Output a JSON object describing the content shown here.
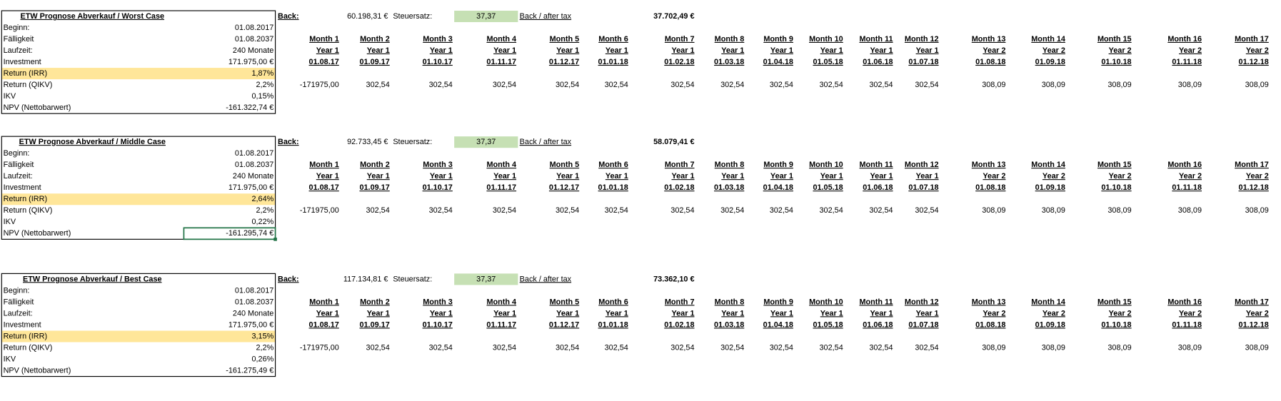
{
  "blocks": [
    {
      "title": "ETW Prognose Abverkauf / Worst Case",
      "rows": [
        {
          "label": "Beginn:",
          "value": "01.08.2017"
        },
        {
          "label": "Fälligkeit",
          "value": "01.08.2037"
        },
        {
          "label": "Laufzeit:",
          "value": "240 Monate"
        },
        {
          "label": "Investment",
          "value": "171.975,00 €"
        },
        {
          "label": "Return (IRR)",
          "value": "1,87%"
        },
        {
          "label": "Return (QIKV)",
          "value": "2,2%"
        },
        {
          "label": "IKV",
          "value": "0,15%"
        },
        {
          "label": "NPV (Nettobarwert)",
          "value": "-161.322,74 €"
        }
      ],
      "back_label": "Back:",
      "back_value": "60.198,31 €",
      "tax_label": "Steuersatz:",
      "tax_value": "37,37",
      "after_tax_label": "Back / after tax",
      "after_tax_value": "37.702,49 €",
      "cashflows": [
        "-171975,00",
        "302,54",
        "302,54",
        "302,54",
        "302,54",
        "302,54",
        "302,54",
        "302,54",
        "302,54",
        "302,54",
        "302,54",
        "302,54",
        "308,09",
        "308,09",
        "308,09",
        "308,09",
        "308,09"
      ]
    },
    {
      "title": "ETW Prognose Abverkauf / Middle Case",
      "rows": [
        {
          "label": "Beginn:",
          "value": "01.08.2017"
        },
        {
          "label": "Fälligkeit",
          "value": "01.08.2037"
        },
        {
          "label": "Laufzeit:",
          "value": "240 Monate"
        },
        {
          "label": "Investment",
          "value": "171.975,00 €"
        },
        {
          "label": "Return (IRR)",
          "value": "2,64%"
        },
        {
          "label": "Return (QIKV)",
          "value": "2,2%"
        },
        {
          "label": "IKV",
          "value": "0,22%"
        },
        {
          "label": "NPV (Nettobarwert)",
          "value": "-161.295,74 €"
        }
      ],
      "back_label": "Back:",
      "back_value": "92.733,45 €",
      "tax_label": "Steuersatz:",
      "tax_value": "37,37",
      "after_tax_label": "Back / after tax",
      "after_tax_value": "58.079,41 €",
      "cashflows": [
        "-171975,00",
        "302,54",
        "302,54",
        "302,54",
        "302,54",
        "302,54",
        "302,54",
        "302,54",
        "302,54",
        "302,54",
        "302,54",
        "302,54",
        "308,09",
        "308,09",
        "308,09",
        "308,09",
        "308,09"
      ]
    },
    {
      "title": "ETW Prognose Abverkauf / Best Case",
      "rows": [
        {
          "label": "Beginn:",
          "value": "01.08.2017"
        },
        {
          "label": "Fälligkeit",
          "value": "01.08.2037"
        },
        {
          "label": "Laufzeit:",
          "value": "240 Monate"
        },
        {
          "label": "Investment",
          "value": "171.975,00 €"
        },
        {
          "label": "Return (IRR)",
          "value": "3,15%"
        },
        {
          "label": "Return (QIKV)",
          "value": "2,2%"
        },
        {
          "label": "IKV",
          "value": "0,26%"
        },
        {
          "label": "NPV (Nettobarwert)",
          "value": "-161.275,49 €"
        }
      ],
      "back_label": "Back:",
      "back_value": "117.134,81 €",
      "tax_label": "Steuersatz:",
      "tax_value": "37,37",
      "after_tax_label": "Back / after tax",
      "after_tax_value": "73.362,10 €",
      "cashflows": [
        "-171975,00",
        "302,54",
        "302,54",
        "302,54",
        "302,54",
        "302,54",
        "302,54",
        "302,54",
        "302,54",
        "302,54",
        "302,54",
        "302,54",
        "308,09",
        "308,09",
        "308,09",
        "308,09",
        "308,09"
      ]
    }
  ],
  "timeline": {
    "months": [
      "Month 1",
      "Month 2",
      "Month 3",
      "Month 4",
      "Month 5",
      "Month 6",
      "Month 7",
      "Month 8",
      "Month 9",
      "Month 10",
      "Month 11",
      "Month 12",
      "Month 13",
      "Month 14",
      "Month 15",
      "Month 16",
      "Month 17"
    ],
    "years": [
      "Year 1",
      "Year 1",
      "Year 1",
      "Year 1",
      "Year 1",
      "Year 1",
      "Year 1",
      "Year 1",
      "Year 1",
      "Year 1",
      "Year 1",
      "Year 1",
      "Year 2",
      "Year 2",
      "Year 2",
      "Year 2",
      "Year 2"
    ],
    "dates": [
      "01.08.17",
      "01.09.17",
      "01.10.17",
      "01.11.17",
      "01.12.17",
      "01.01.18",
      "01.02.18",
      "01.03.18",
      "01.04.18",
      "01.05.18",
      "01.06.18",
      "01.07.18",
      "01.08.18",
      "01.09.18",
      "01.10.18",
      "01.11.18",
      "01.12.18"
    ]
  }
}
